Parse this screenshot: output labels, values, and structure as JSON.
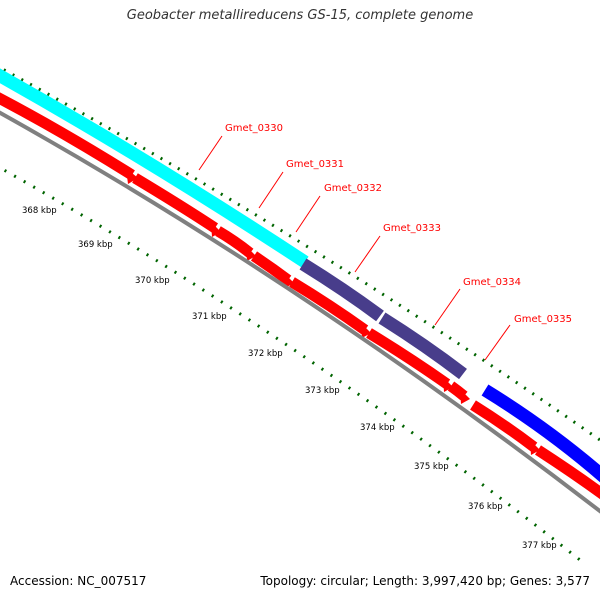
{
  "title": "Geobacter metallireducens GS-15, complete genome",
  "footer": {
    "accession": "Accession: NC_007517",
    "stats": "Topology: circular; Length: 3,997,420 bp; Genes: 3,577"
  },
  "colors": {
    "gene_cyan": "#00ffff",
    "gene_slate": "#483d8b",
    "gene_blue": "#0000ff",
    "cds_red": "#ff0000",
    "backbone_gray": "#808080",
    "tick_green": "#006400",
    "label_red": "#ff0000"
  },
  "kbp_ticks": [
    {
      "label": "368 kbp"
    },
    {
      "label": "369 kbp"
    },
    {
      "label": "370 kbp"
    },
    {
      "label": "371 kbp"
    },
    {
      "label": "372 kbp"
    },
    {
      "label": "373 kbp"
    },
    {
      "label": "374 kbp"
    },
    {
      "label": "375 kbp"
    },
    {
      "label": "376 kbp"
    },
    {
      "label": "377 kbp"
    }
  ],
  "genes": [
    {
      "label": "Gmet_0330",
      "color": "cyan"
    },
    {
      "label": "Gmet_0331",
      "color": "cyan"
    },
    {
      "label": "Gmet_0332",
      "color": "cyan"
    },
    {
      "label": "Gmet_0333",
      "color": "slate"
    },
    {
      "label": "Gmet_0334",
      "color": "slate"
    },
    {
      "label": "Gmet_0335",
      "color": "blue"
    }
  ]
}
